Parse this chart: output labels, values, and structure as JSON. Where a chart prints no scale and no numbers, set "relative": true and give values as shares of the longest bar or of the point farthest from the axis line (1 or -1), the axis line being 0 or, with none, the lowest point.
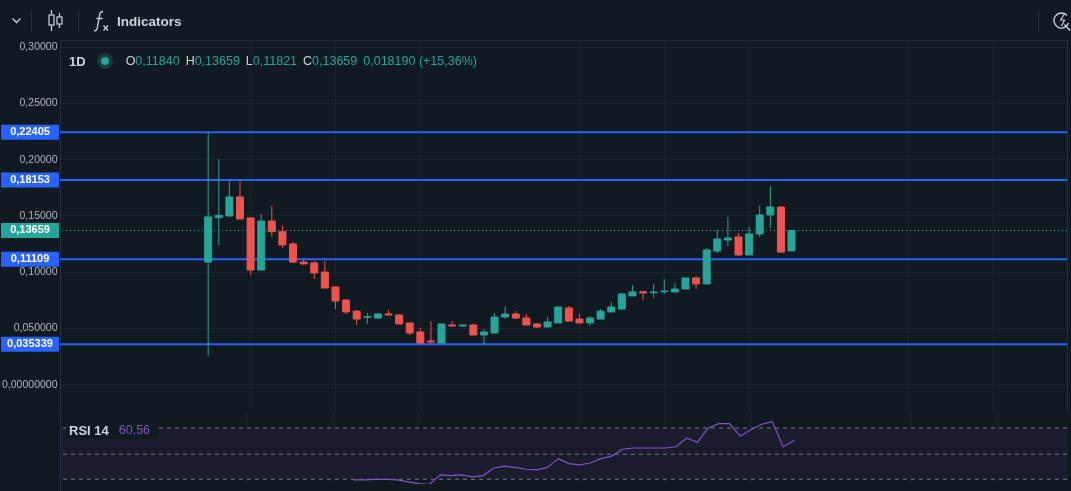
{
  "chart_data": [
    {
      "type": "candlestick",
      "title": "1D",
      "annotations": [
        "Indicators",
        "O0,11840",
        "H0,13659",
        "L0,11821",
        "C0,13659",
        "0,018190 (+15,36%)"
      ],
      "categories": [
        null,
        null,
        null,
        null,
        null,
        null,
        null,
        null,
        null,
        null,
        null,
        null,
        null,
        null,
        null,
        null,
        null,
        null,
        null,
        null,
        null,
        null,
        null,
        null,
        null,
        null,
        null,
        null,
        null,
        null,
        null,
        null,
        null,
        null,
        null,
        null,
        null,
        null,
        null,
        null,
        null,
        null,
        null,
        null,
        null,
        null,
        null,
        null,
        null,
        null,
        null,
        null,
        null,
        null,
        null,
        null,
        null,
        null,
        null,
        null,
        null,
        null,
        null,
        null,
        null,
        null,
        null,
        null,
        null,
        null,
        null,
        null,
        null,
        null,
        null,
        null,
        null,
        null,
        null,
        null,
        null,
        null,
        null,
        null,
        null,
        null,
        null,
        null,
        null,
        null,
        null,
        null,
        null,
        null
      ],
      "ohlc": [
        null,
        null,
        null,
        null,
        null,
        null,
        null,
        null,
        null,
        null,
        null,
        null,
        null,
        [
          0.1085,
          0.22405,
          0.0252,
          0.1486
        ],
        [
          0.148,
          0.2,
          0.1237,
          0.15
        ],
        [
          0.1495,
          0.1815,
          0.1486,
          0.1664
        ],
        [
          0.1664,
          0.1809,
          0.1468,
          0.1468
        ],
        [
          0.1477,
          0.148,
          0.097,
          0.1014
        ],
        [
          0.1014,
          0.1512,
          0.1014,
          0.145
        ],
        [
          0.145,
          0.1584,
          0.1311,
          0.1355
        ],
        [
          0.1355,
          0.1406,
          0.121,
          0.1237
        ],
        [
          0.1246,
          0.1263,
          0.1077,
          0.1085
        ],
        [
          0.1085,
          0.1112,
          0.1059,
          0.1068
        ],
        [
          0.1077,
          0.1094,
          0.0934,
          0.0988
        ],
        [
          0.0996,
          0.1094,
          0.0854,
          0.0854
        ],
        [
          0.0863,
          0.0863,
          0.0667,
          0.0738
        ],
        [
          0.0747,
          0.0756,
          0.0623,
          0.0641
        ],
        [
          0.0649,
          0.0658,
          0.0525,
          0.0578
        ],
        [
          0.0594,
          0.0632,
          0.0534,
          0.0598
        ],
        [
          0.0587,
          0.0632,
          0.0587,
          0.0623
        ],
        [
          0.0623,
          0.0658,
          0.0614,
          0.0614
        ],
        [
          0.0614,
          0.0623,
          0.0534,
          0.0534
        ],
        [
          0.0543,
          0.0543,
          0.0436,
          0.0454
        ],
        [
          0.0463,
          0.0498,
          0.0365,
          0.0365
        ],
        [
          0.0383,
          0.056,
          0.0353,
          0.0374
        ],
        [
          0.0365,
          0.0534,
          0.0365,
          0.0534
        ],
        [
          0.0525,
          0.056,
          0.0516,
          0.0516
        ],
        [
          0.0516,
          0.0525,
          0.0507,
          0.0525
        ],
        [
          0.0525,
          0.0534,
          0.0436,
          0.0436
        ],
        [
          0.0436,
          0.0489,
          0.0356,
          0.0463
        ],
        [
          0.0454,
          0.0632,
          0.0454,
          0.0596
        ],
        [
          0.0596,
          0.0694,
          0.0578,
          0.0623
        ],
        [
          0.0623,
          0.0649,
          0.0578,
          0.0587
        ],
        [
          0.0587,
          0.0623,
          0.0525,
          0.0525
        ],
        [
          0.0534,
          0.0543,
          0.0498,
          0.0507
        ],
        [
          0.0507,
          0.0596,
          0.0507,
          0.0552
        ],
        [
          0.0543,
          0.0685,
          0.0543,
          0.0685
        ],
        [
          0.0676,
          0.0694,
          0.056,
          0.056
        ],
        [
          0.0578,
          0.0623,
          0.0543,
          0.0543
        ],
        [
          0.0543,
          0.0605,
          0.0516,
          0.0587
        ],
        [
          0.0578,
          0.0667,
          0.0578,
          0.0649
        ],
        [
          0.0641,
          0.073,
          0.0641,
          0.0685
        ],
        [
          0.0667,
          0.081,
          0.0667,
          0.0801
        ],
        [
          0.0783,
          0.0881,
          0.0783,
          0.0819
        ],
        [
          0.0821,
          0.0827,
          0.0747,
          0.081
        ],
        [
          0.0812,
          0.089,
          0.0765,
          0.0819
        ],
        [
          0.0821,
          0.0934,
          0.0801,
          0.0827
        ],
        [
          0.0819,
          0.0899,
          0.0819,
          0.0845
        ],
        [
          0.0845,
          0.0943,
          0.0845,
          0.0943
        ],
        [
          0.0943,
          0.0961,
          0.0845,
          0.089
        ],
        [
          0.089,
          0.121,
          0.089,
          0.1192
        ],
        [
          0.1183,
          0.137,
          0.1165,
          0.129
        ],
        [
          0.1281,
          0.1486,
          0.1228,
          0.1299
        ],
        [
          0.1308,
          0.1343,
          0.1139,
          0.1148
        ],
        [
          0.1148,
          0.1397,
          0.1148,
          0.1335
        ],
        [
          0.1335,
          0.1584,
          0.1308,
          0.1504
        ],
        [
          0.1504,
          0.1762,
          0.1388,
          0.1575
        ],
        [
          0.1575,
          0.1575,
          0.1165,
          0.1174
        ],
        [
          0.1184,
          0.13659,
          0.11821,
          0.13659
        ],
        null,
        null,
        null,
        null,
        null,
        null,
        null,
        null,
        null,
        null,
        null,
        null,
        null,
        null,
        null,
        null,
        null,
        null,
        null,
        null,
        null,
        null,
        null,
        null,
        null
      ],
      "colors": [
        null,
        null,
        null,
        null,
        null,
        null,
        null,
        null,
        null,
        null,
        null,
        null,
        null,
        "#26a69a",
        "#26a69a",
        "#26a69a",
        "#ef5350",
        "#ef5350",
        "#26a69a",
        "#ef5350",
        "#ef5350",
        "#ef5350",
        "#ef5350",
        "#ef5350",
        "#ef5350",
        "#ef5350",
        "#ef5350",
        "#ef5350",
        "#26a69a",
        "#26a69a",
        "#ef5350",
        "#ef5350",
        "#ef5350",
        "#ef5350",
        "#ef5350",
        "#26a69a",
        "#ef5350",
        "#26a69a",
        "#ef5350",
        "#26a69a",
        "#26a69a",
        "#26a69a",
        "#ef5350",
        "#ef5350",
        "#ef5350",
        "#26a69a",
        "#26a69a",
        "#ef5350",
        "#ef5350",
        "#26a69a",
        "#26a69a",
        "#26a69a",
        "#26a69a",
        "#26a69a",
        "#ef5350",
        "#26a69a",
        "#26a69a",
        "#26a69a",
        "#26a69a",
        "#ef5350",
        "#26a69a",
        "#26a69a",
        "#26a69a",
        "#ef5350",
        "#26a69a",
        "#26a69a",
        "#26a69a",
        "#ef5350",
        "#26a69a",
        null,
        null,
        null,
        null,
        null,
        null,
        null,
        null,
        null,
        null,
        null,
        null,
        null,
        null,
        null,
        null,
        null,
        null,
        null,
        null,
        null,
        null,
        null,
        null,
        null
      ],
      "ylim": [
        -0.024,
        0.306
      ],
      "yticks": [
        {
          "value": 0,
          "label": "0,00000000"
        },
        {
          "value": 0.05,
          "label": "0,050000"
        },
        {
          "value": 0.1,
          "label": "0,10000"
        },
        {
          "value": 0.15,
          "label": "0,15000"
        },
        {
          "value": 0.2,
          "label": "0,20000"
        },
        {
          "value": 0.25,
          "label": "0,25000"
        },
        {
          "value": 0.3,
          "label": "0,30000"
        }
      ],
      "grid": true,
      "tick_labels": "y",
      "ref_lines": [
        {
          "axis": "y",
          "value": 0.22405,
          "label": "0,22405",
          "color": "#2962ff"
        },
        {
          "axis": "y",
          "value": 0.18153,
          "label": "0,18153",
          "color": "#2962ff"
        },
        {
          "axis": "y",
          "value": 0.11109,
          "label": "0,11109",
          "color": "#2962ff"
        },
        {
          "axis": "y",
          "value": 0.035339,
          "label": "0,035339",
          "color": "#2962ff"
        },
        {
          "axis": "y",
          "value": 0.13659,
          "label": "0,13659",
          "color": "#26a69a",
          "line_style": "dotted"
        }
      ]
    },
    {
      "type": "line",
      "title": "RSI 14",
      "annotations": [
        "60,56"
      ],
      "relative": true,
      "grid": "x",
      "categories": [
        null,
        null,
        null,
        null,
        null,
        null,
        null,
        null,
        null,
        null,
        null,
        null,
        null,
        null,
        null,
        null,
        null,
        null,
        null,
        null,
        null,
        null,
        null,
        null,
        null,
        null,
        null,
        null,
        null,
        null,
        null,
        null,
        null,
        null,
        null,
        null,
        null,
        null,
        null,
        null,
        null,
        null,
        null,
        null,
        null,
        null,
        null,
        null,
        null,
        null,
        null,
        null,
        null,
        null,
        null,
        null,
        null,
        null,
        null,
        null,
        null,
        null,
        null,
        null,
        null,
        null,
        null,
        null,
        null,
        null,
        null,
        null,
        null,
        null,
        null,
        null,
        null,
        null,
        null,
        null,
        null,
        null,
        null,
        null,
        null,
        null,
        null,
        null,
        null,
        null,
        null,
        null,
        null,
        null
      ],
      "series": [
        {
          "color": "#7e57c2",
          "values": [
            null,
            null,
            null,
            null,
            null,
            null,
            null,
            null,
            null,
            null,
            null,
            null,
            null,
            null,
            null,
            null,
            null,
            null,
            null,
            null,
            null,
            null,
            null,
            null,
            null,
            null,
            null,
            0.07,
            0.07,
            0.08,
            0.08,
            0.07,
            0.04,
            0.01,
            0,
            0.15,
            0.14,
            0.15,
            0.12,
            0.14,
            0.26,
            0.29,
            0.27,
            0.24,
            0.23,
            0.27,
            0.41,
            0.33,
            0.31,
            0.34,
            0.41,
            0.45,
            0.56,
            0.58,
            0.58,
            0.58,
            0.58,
            0.6,
            0.74,
            0.67,
            0.9,
            0.97,
            0.97,
            0.77,
            0.87,
            0.96,
            1,
            0.6,
            0.7,
            null,
            null,
            null,
            null,
            null,
            null,
            null,
            null,
            null,
            null,
            null,
            null,
            null,
            null,
            null,
            null,
            null,
            null,
            null,
            null,
            null,
            null,
            null,
            null,
            null
          ]
        }
      ],
      "ref_lines": [
        {
          "axis": "y",
          "value": 0.9,
          "color": "#787b86",
          "line_style": "dashed"
        },
        {
          "axis": "y",
          "value": 0.48,
          "color": "#787b86",
          "line_style": "dashed"
        },
        {
          "axis": "y",
          "value": 0.08,
          "color": "#787b86",
          "line_style": "dashed"
        }
      ],
      "bands": [
        {
          "axis": "y",
          "from": 0.08,
          "to": 0.9,
          "color": "#1b1d2e"
        }
      ]
    }
  ]
}
